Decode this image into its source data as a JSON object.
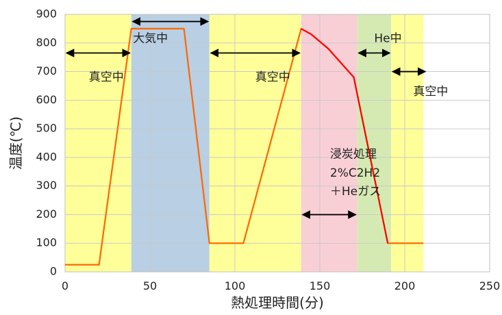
{
  "chart_data": {
    "type": "line",
    "xlabel": "熱処理時間(分)",
    "ylabel": "温度(℃)",
    "xlim": [
      0,
      250
    ],
    "ylim": [
      0,
      900
    ],
    "xticks": [
      0,
      50,
      100,
      150,
      200,
      250
    ],
    "yticks": [
      0,
      100,
      200,
      300,
      400,
      500,
      600,
      700,
      800,
      900
    ],
    "grid": true,
    "series": [
      {
        "color": "#ff6600",
        "points": [
          [
            0,
            25
          ],
          [
            20,
            25
          ],
          [
            39,
            850
          ],
          [
            70,
            850
          ],
          [
            85,
            100
          ],
          [
            105,
            100
          ],
          [
            139,
            850
          ],
          [
            145,
            830
          ],
          [
            155,
            780
          ],
          [
            170,
            680
          ],
          [
            190,
            100
          ],
          [
            211,
            100
          ]
        ]
      }
    ],
    "bands": [
      {
        "x0": 0,
        "x1": 39,
        "color": "#ffff99"
      },
      {
        "x0": 39,
        "x1": 85,
        "color": "#b8cfe4"
      },
      {
        "x0": 85,
        "x1": 139,
        "color": "#ffff99"
      },
      {
        "x0": 139,
        "x1": 172,
        "color": "#f9cfd6"
      },
      {
        "x0": 172,
        "x1": 192,
        "color": "#d5eab2"
      },
      {
        "x0": 192,
        "x1": 211,
        "color": "#ffff99"
      }
    ],
    "arrows": [
      {
        "x0": 0,
        "x1": 39,
        "y": 765
      },
      {
        "x0": 39,
        "x1": 85,
        "y": 875
      },
      {
        "x0": 85,
        "x1": 139,
        "y": 765
      },
      {
        "x0": 172,
        "x1": 192,
        "y": 765
      },
      {
        "x0": 192,
        "x1": 213,
        "y": 700
      },
      {
        "x0": 139,
        "x1": 172,
        "y": 200
      }
    ],
    "annotations": [
      {
        "text": "真空中",
        "x": 14,
        "y": 680
      },
      {
        "text": "大気中",
        "x": 40,
        "y": 815
      },
      {
        "text": "真空中",
        "x": 112,
        "y": 680
      },
      {
        "text": "He中",
        "x": 182,
        "y": 815
      },
      {
        "text": "真空中",
        "x": 205,
        "y": 630
      },
      {
        "text": "浸炭処理",
        "x": 156,
        "y": 410
      },
      {
        "text": "2%C2H2",
        "x": 156,
        "y": 345
      },
      {
        "text": "＋Heガス",
        "x": 156,
        "y": 280
      }
    ]
  }
}
